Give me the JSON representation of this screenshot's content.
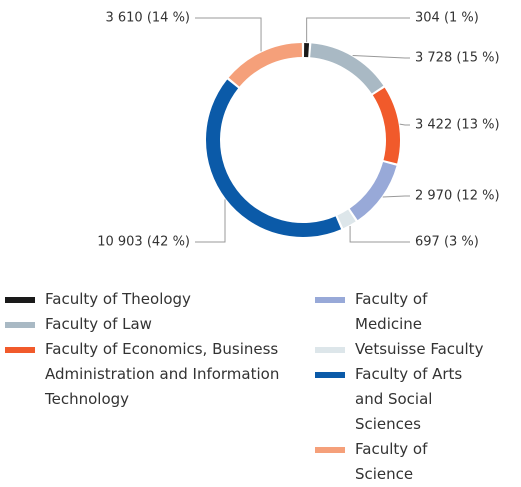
{
  "chart_data": {
    "type": "donut",
    "categories": [
      "Faculty of Theology",
      "Faculty of Law",
      "Faculty of Economics, Business Administration and Information Technology",
      "Faculty of Medicine",
      "Vetsuisse Faculty",
      "Faculty of Arts and Social Sciences",
      "Faculty of Science"
    ],
    "values": [
      304,
      3728,
      3422,
      2970,
      697,
      10903,
      3610
    ],
    "value_labels": [
      "304 (1 %)",
      "3 728 (15 %)",
      "3 422 (13 %)",
      "2 970 (12 %)",
      "697 (3 %)",
      "10 903 (42 %)",
      "3 610 (14 %)"
    ],
    "colors": [
      "#1a1a1a",
      "#a9b9c4",
      "#f15a2b",
      "#98a9d8",
      "#dde6ea",
      "#0b5aa8",
      "#f5a07a"
    ]
  }
}
